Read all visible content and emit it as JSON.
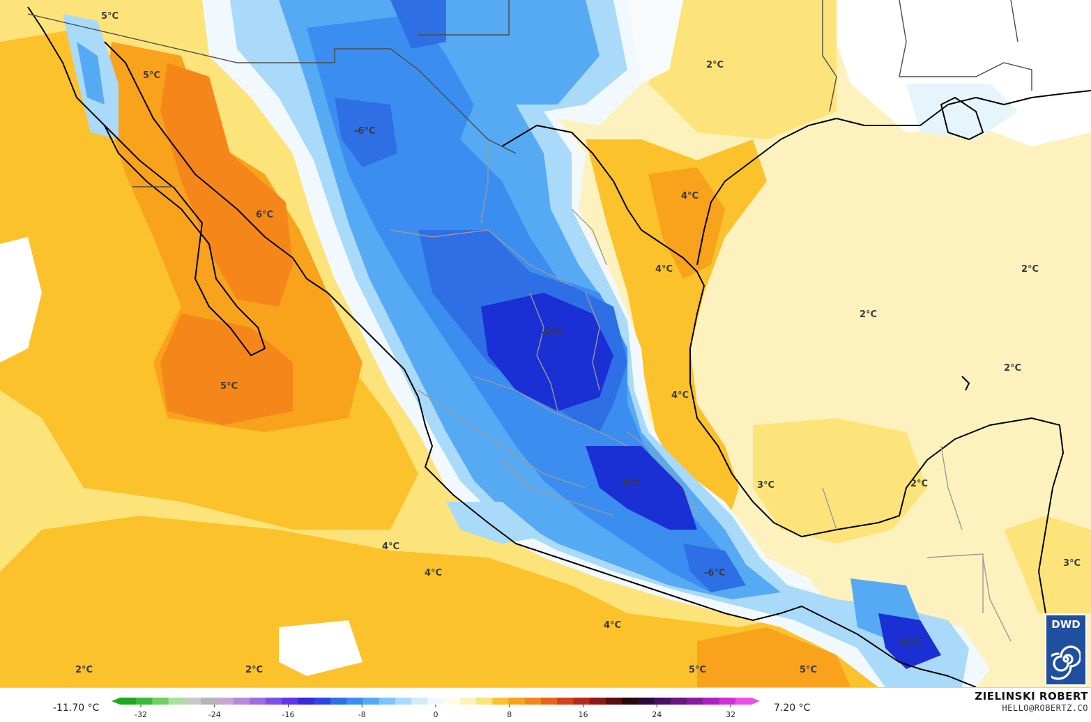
{
  "map": {
    "labels": [
      {
        "text": "5°C"
      },
      {
        "text": "5°C"
      },
      {
        "text": "-6°C"
      },
      {
        "text": "6°C"
      },
      {
        "text": "2°C"
      },
      {
        "text": "4°C"
      },
      {
        "text": "4°C"
      },
      {
        "text": "-9°C"
      },
      {
        "text": "2°C"
      },
      {
        "text": "2°C"
      },
      {
        "text": "2°C"
      },
      {
        "text": "5°C"
      },
      {
        "text": "4°C"
      },
      {
        "text": "-8°C"
      },
      {
        "text": "3°C"
      },
      {
        "text": "2°C"
      },
      {
        "text": "4°C"
      },
      {
        "text": "4°C"
      },
      {
        "text": "-6°C"
      },
      {
        "text": "3°C"
      },
      {
        "text": "4°C"
      },
      {
        "text": "-6°C"
      },
      {
        "text": "2°C"
      },
      {
        "text": "2°C"
      },
      {
        "text": "5°C"
      },
      {
        "text": "5°C"
      }
    ],
    "colors": {
      "deep_blue": "#1a2fd4",
      "blue": "#2f6fe6",
      "mid_blue": "#4aa3ef",
      "light_blue": "#9fd8f6",
      "pale_blue": "#d8f0fb",
      "white": "#ffffff",
      "pale_yellow": "#fdf2bd",
      "yellow": "#fde47a",
      "gold": "#fcc22c",
      "orange": "#f9a21c",
      "dark_orange": "#f5871a",
      "coast": "#000000",
      "state_border": "#9a9a9a"
    }
  },
  "scale": {
    "min_label": "-11.70 °C",
    "max_label": "7.20 °C",
    "ticks": [
      "-32",
      "-24",
      "-16",
      "-8",
      "0",
      "8",
      "16",
      "24",
      "32"
    ],
    "range": [
      -32,
      32
    ],
    "colors": [
      "#1fa81f",
      "#3cb83c",
      "#6fcf5f",
      "#a9dfa0",
      "#c9c9c9",
      "#b4b4b4",
      "#c7a9cf",
      "#b58bd8",
      "#9a6de0",
      "#7d4fe6",
      "#6036ea",
      "#3a27e0",
      "#2a46e8",
      "#2f6fe6",
      "#3b8ef0",
      "#56aaf3",
      "#7cc4f7",
      "#a9daf9",
      "#d2ecfb",
      "#f2f9fe",
      "#fffbe9",
      "#fdf2bd",
      "#fde47a",
      "#fcc22c",
      "#f9a21c",
      "#f5871a",
      "#e8641b",
      "#d4421b",
      "#b52a18",
      "#8c1a14",
      "#5a0f0f",
      "#2a0808",
      "#2a0a3a",
      "#4a1060",
      "#6a1580",
      "#8a1aa0",
      "#b020c0",
      "#d030d8",
      "#e850e8"
    ]
  },
  "author": {
    "name": "ZIELINSKI ROBERT",
    "email": "HELLO@ROBERTZ.CO"
  },
  "logo": {
    "text": "DWD"
  }
}
